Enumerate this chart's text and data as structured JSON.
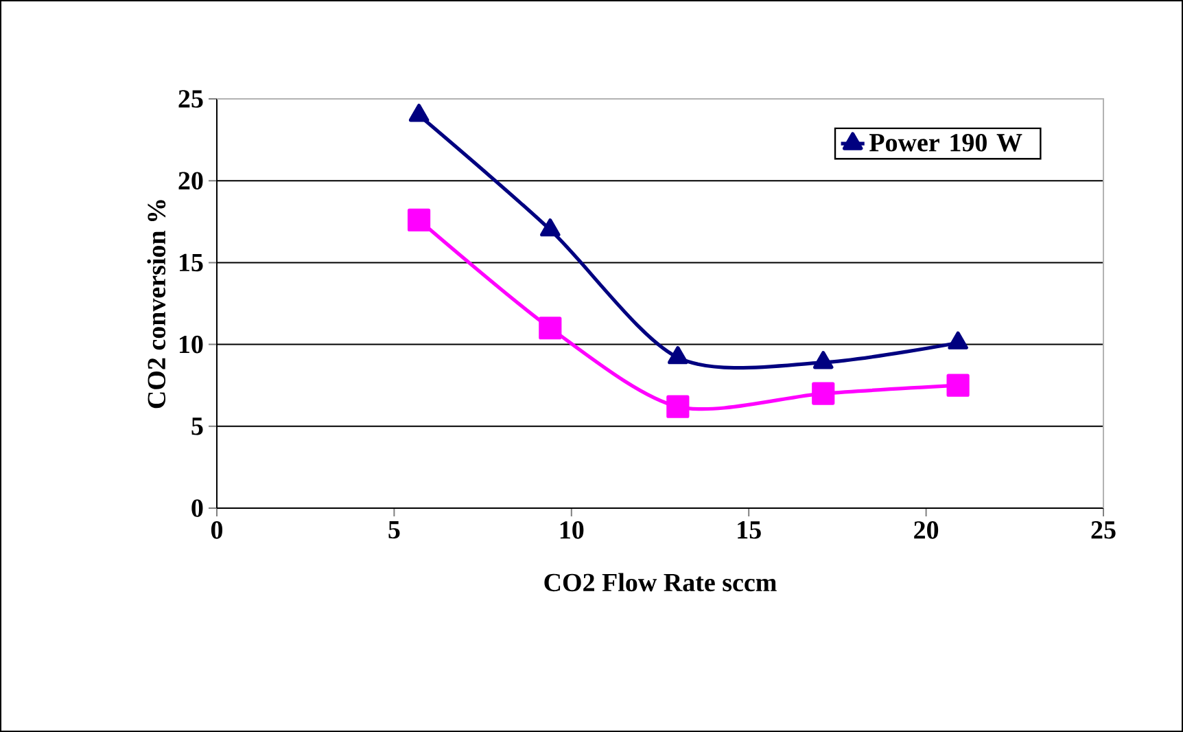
{
  "chart_data": {
    "type": "line",
    "xlabel": "CO2 Flow Rate sccm",
    "ylabel": "CO2 conversion %",
    "x": [
      5.7,
      9.4,
      13.0,
      17.1,
      20.9
    ],
    "series": [
      {
        "name": "Power 190 W",
        "color": "#000080",
        "marker": "triangle",
        "values": [
          24.0,
          17.0,
          9.2,
          8.9,
          10.1
        ]
      },
      {
        "color": "#ff00ff",
        "marker": "square",
        "values": [
          17.6,
          11.0,
          6.2,
          7.0,
          7.5
        ]
      }
    ],
    "xlim": [
      0,
      25
    ],
    "xticks": [
      0,
      5,
      10,
      15,
      20,
      25
    ],
    "ylim": [
      0,
      25
    ],
    "yticks": [
      0,
      5,
      10,
      15,
      20,
      25
    ],
    "grid": "y",
    "legend": "top right"
  }
}
